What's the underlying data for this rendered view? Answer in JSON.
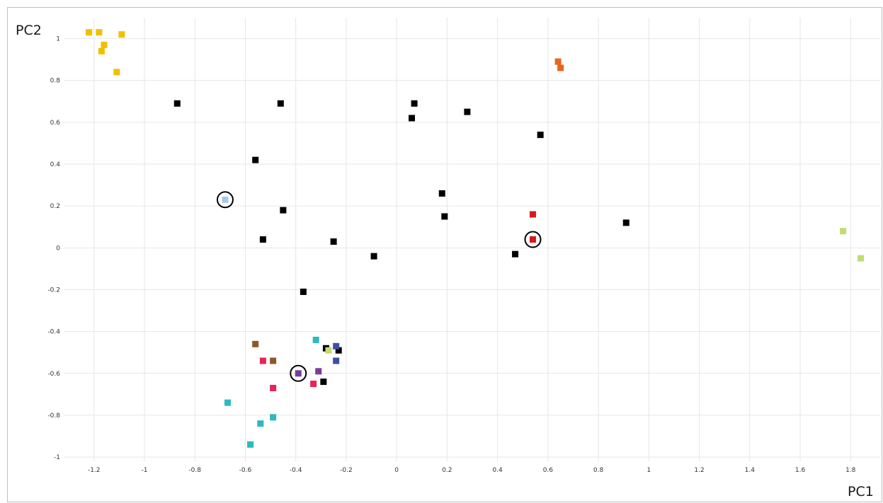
{
  "chart_data": {
    "type": "scatter",
    "title": "",
    "xlabel": "PC1",
    "ylabel": "PC2",
    "xlim": [
      -1.32,
      1.92
    ],
    "ylim": [
      -1.02,
      1.1
    ],
    "grid": true,
    "x_ticks": [
      -1.2,
      -1,
      -0.8,
      -0.6,
      -0.4,
      -0.2,
      0,
      0.2,
      0.4,
      0.6,
      0.8,
      1,
      1.2,
      1.4,
      1.6,
      1.8
    ],
    "y_ticks": [
      1,
      0.8,
      0.6,
      0.4,
      0.2,
      0,
      -0.2,
      -0.4,
      -0.6,
      -0.8,
      -1
    ],
    "points": [
      {
        "x": -1.22,
        "y": 1.03,
        "color": "#f0c000"
      },
      {
        "x": -1.18,
        "y": 1.03,
        "color": "#f0c000"
      },
      {
        "x": -1.09,
        "y": 1.02,
        "color": "#f0c000"
      },
      {
        "x": -1.16,
        "y": 0.97,
        "color": "#f0c000"
      },
      {
        "x": -1.17,
        "y": 0.94,
        "color": "#f0c000"
      },
      {
        "x": -1.11,
        "y": 0.84,
        "color": "#f0c000"
      },
      {
        "x": 0.64,
        "y": 0.89,
        "color": "#e8651e"
      },
      {
        "x": 0.65,
        "y": 0.86,
        "color": "#e8651e"
      },
      {
        "x": -0.87,
        "y": 0.69,
        "color": "#000000"
      },
      {
        "x": -0.46,
        "y": 0.69,
        "color": "#000000"
      },
      {
        "x": 0.07,
        "y": 0.69,
        "color": "#000000"
      },
      {
        "x": 0.06,
        "y": 0.62,
        "color": "#000000"
      },
      {
        "x": 0.28,
        "y": 0.65,
        "color": "#000000"
      },
      {
        "x": 0.57,
        "y": 0.54,
        "color": "#000000"
      },
      {
        "x": -0.56,
        "y": 0.42,
        "color": "#000000"
      },
      {
        "x": 0.18,
        "y": 0.26,
        "color": "#000000"
      },
      {
        "x": -0.45,
        "y": 0.18,
        "color": "#000000"
      },
      {
        "x": 0.19,
        "y": 0.15,
        "color": "#000000"
      },
      {
        "x": 0.91,
        "y": 0.12,
        "color": "#000000"
      },
      {
        "x": -0.53,
        "y": 0.04,
        "color": "#000000"
      },
      {
        "x": -0.25,
        "y": 0.03,
        "color": "#000000"
      },
      {
        "x": -0.09,
        "y": -0.04,
        "color": "#000000"
      },
      {
        "x": 0.47,
        "y": -0.03,
        "color": "#000000"
      },
      {
        "x": -0.37,
        "y": -0.21,
        "color": "#000000"
      },
      {
        "x": -0.28,
        "y": -0.48,
        "color": "#000000"
      },
      {
        "x": -0.23,
        "y": -0.49,
        "color": "#000000"
      },
      {
        "x": -0.29,
        "y": -0.64,
        "color": "#000000"
      },
      {
        "x": -0.68,
        "y": 0.23,
        "color": "#a8c8e8",
        "circled": true
      },
      {
        "x": 0.54,
        "y": 0.16,
        "color": "#d7191c"
      },
      {
        "x": 0.54,
        "y": 0.04,
        "color": "#d7191c",
        "circled": true
      },
      {
        "x": 1.77,
        "y": 0.08,
        "color": "#c2dc6e"
      },
      {
        "x": 1.84,
        "y": -0.05,
        "color": "#c2dc6e"
      },
      {
        "x": -0.27,
        "y": -0.49,
        "color": "#c2dc6e"
      },
      {
        "x": -0.56,
        "y": -0.46,
        "color": "#8b5a2b"
      },
      {
        "x": -0.49,
        "y": -0.54,
        "color": "#8b5a2b"
      },
      {
        "x": -0.32,
        "y": -0.44,
        "color": "#2eb8c0"
      },
      {
        "x": -0.67,
        "y": -0.74,
        "color": "#2eb8c0"
      },
      {
        "x": -0.49,
        "y": -0.81,
        "color": "#2eb8c0"
      },
      {
        "x": -0.54,
        "y": -0.84,
        "color": "#2eb8c0"
      },
      {
        "x": -0.58,
        "y": -0.94,
        "color": "#2eb8c0"
      },
      {
        "x": -0.24,
        "y": -0.47,
        "color": "#3a4fa8"
      },
      {
        "x": -0.24,
        "y": -0.54,
        "color": "#3a4fa8"
      },
      {
        "x": -0.53,
        "y": -0.54,
        "color": "#e8225a"
      },
      {
        "x": -0.49,
        "y": -0.67,
        "color": "#e8225a"
      },
      {
        "x": -0.33,
        "y": -0.65,
        "color": "#e8225a"
      },
      {
        "x": -0.31,
        "y": -0.59,
        "color": "#7b3a9e"
      },
      {
        "x": -0.39,
        "y": -0.6,
        "color": "#7b3a9e",
        "circled": true
      }
    ]
  }
}
